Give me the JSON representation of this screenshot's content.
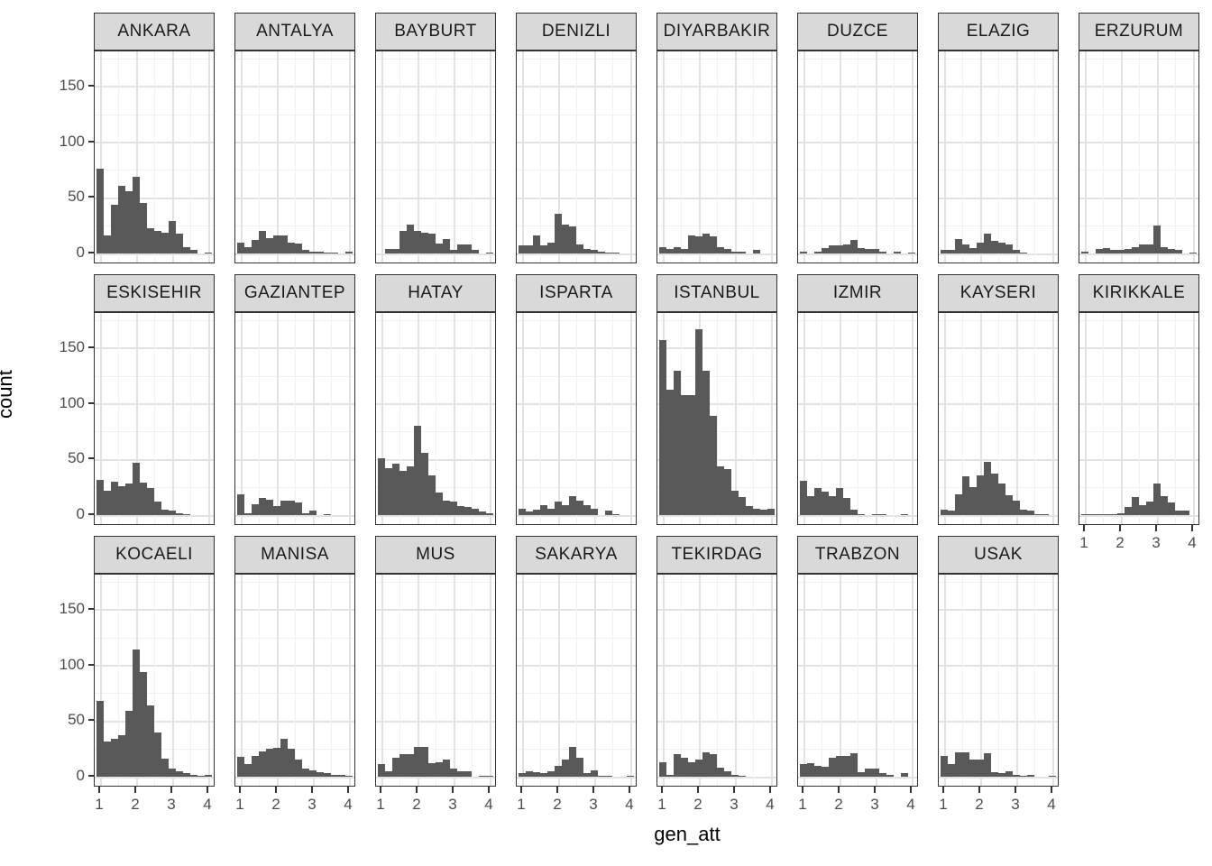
{
  "figure": {
    "y_axis_title": "count",
    "x_axis_title": "gen_att"
  },
  "axes": {
    "y_tick_labels": [
      "0",
      "50",
      "100",
      "150"
    ],
    "y_tick_values": [
      0,
      50,
      100,
      150
    ],
    "y_minor_values": [
      25,
      75,
      125,
      175
    ],
    "x_tick_labels": [
      "1",
      "2",
      "3",
      "4"
    ],
    "x_tick_values": [
      1,
      2,
      3,
      4
    ],
    "x_minor_values": [
      1.5,
      2.5,
      3.5
    ]
  },
  "colors": {
    "bar_fill": "#595959",
    "strip_fill": "#d9d9d9",
    "panel_border": "#333333",
    "grid_major": "#e3e3e3",
    "grid_minor": "#f1f1f1",
    "axis_text": "#4d4d4d",
    "title_text": "#000000"
  },
  "chart_data": {
    "type": "bar",
    "subtype": "faceted-histogram",
    "x_variable": "gen_att",
    "y_variable": "count",
    "facet_variable": "city",
    "bin_width": 0.2,
    "bin_centers": [
      1.0,
      1.2,
      1.4,
      1.6,
      1.8,
      2.0,
      2.2,
      2.4,
      2.6,
      2.8,
      3.0,
      3.2,
      3.4,
      3.6,
      3.8,
      4.0
    ],
    "x_range": [
      0.85,
      4.15
    ],
    "y_range": [
      -10,
      181
    ],
    "grid": true,
    "facets": [
      {
        "label": "ANKARA",
        "counts": [
          76,
          16,
          44,
          61,
          56,
          69,
          45,
          23,
          20,
          19,
          29,
          18,
          6,
          3,
          0,
          1
        ]
      },
      {
        "label": "ANTALYA",
        "counts": [
          10,
          6,
          12,
          20,
          14,
          16,
          16,
          10,
          9,
          3,
          2,
          2,
          1,
          1,
          0,
          2
        ]
      },
      {
        "label": "BAYBURT",
        "counts": [
          0,
          4,
          4,
          20,
          26,
          20,
          19,
          18,
          9,
          13,
          3,
          8,
          8,
          3,
          0,
          1
        ]
      },
      {
        "label": "DENIZLI",
        "counts": [
          7,
          7,
          16,
          7,
          10,
          36,
          26,
          24,
          8,
          4,
          3,
          2,
          1,
          1,
          0,
          0
        ]
      },
      {
        "label": "DIYARBAKIR",
        "counts": [
          6,
          4,
          6,
          4,
          16,
          15,
          18,
          15,
          6,
          4,
          2,
          2,
          0,
          3,
          0,
          0
        ]
      },
      {
        "label": "DUZCE",
        "counts": [
          2,
          0,
          2,
          5,
          7,
          7,
          8,
          12,
          5,
          4,
          4,
          2,
          0,
          2,
          0,
          1
        ]
      },
      {
        "label": "ELAZIG",
        "counts": [
          3,
          3,
          13,
          8,
          5,
          10,
          18,
          11,
          10,
          8,
          3,
          1,
          0,
          0,
          0,
          0
        ]
      },
      {
        "label": "ERZURUM",
        "counts": [
          2,
          0,
          4,
          5,
          3,
          3,
          4,
          6,
          8,
          8,
          25,
          6,
          4,
          3,
          0,
          1
        ]
      },
      {
        "label": "ESKISEHIR",
        "counts": [
          32,
          22,
          30,
          26,
          28,
          47,
          29,
          24,
          12,
          5,
          4,
          2,
          1,
          0,
          0,
          0
        ]
      },
      {
        "label": "GAZIANTEP",
        "counts": [
          19,
          2,
          10,
          15,
          14,
          8,
          13,
          13,
          11,
          2,
          4,
          0,
          1,
          0,
          0,
          0
        ]
      },
      {
        "label": "HATAY",
        "counts": [
          51,
          42,
          46,
          40,
          44,
          80,
          56,
          36,
          20,
          13,
          12,
          8,
          7,
          6,
          3,
          2
        ]
      },
      {
        "label": "ISPARTA",
        "counts": [
          6,
          3,
          5,
          9,
          6,
          12,
          9,
          17,
          13,
          9,
          6,
          0,
          4,
          1,
          0,
          0
        ]
      },
      {
        "label": "ISTANBUL",
        "counts": [
          157,
          113,
          130,
          108,
          108,
          167,
          130,
          89,
          44,
          41,
          22,
          16,
          8,
          6,
          5,
          6
        ]
      },
      {
        "label": "IZMIR",
        "counts": [
          31,
          17,
          24,
          21,
          17,
          24,
          15,
          5,
          1,
          0,
          1,
          1,
          0,
          0,
          1,
          0
        ]
      },
      {
        "label": "KAYSERI",
        "counts": [
          5,
          4,
          19,
          35,
          25,
          36,
          48,
          37,
          28,
          18,
          13,
          5,
          4,
          1,
          1,
          0
        ]
      },
      {
        "label": "KIRIKKALE",
        "counts": [
          1,
          1,
          1,
          1,
          1,
          2,
          7,
          16,
          9,
          12,
          28,
          17,
          11,
          4,
          4,
          0
        ]
      },
      {
        "label": "KOCAELI",
        "counts": [
          68,
          32,
          34,
          37,
          59,
          114,
          94,
          64,
          40,
          16,
          7,
          5,
          3,
          2,
          1,
          2
        ]
      },
      {
        "label": "MANISA",
        "counts": [
          18,
          11,
          19,
          23,
          25,
          26,
          34,
          25,
          15,
          7,
          6,
          4,
          3,
          2,
          2,
          1
        ]
      },
      {
        "label": "MUS",
        "counts": [
          11,
          5,
          17,
          20,
          20,
          27,
          27,
          12,
          13,
          15,
          7,
          5,
          5,
          0,
          1,
          1
        ]
      },
      {
        "label": "SAKARYA",
        "counts": [
          3,
          5,
          4,
          3,
          5,
          10,
          15,
          27,
          17,
          3,
          6,
          1,
          1,
          0,
          0,
          1
        ]
      },
      {
        "label": "TEKIRDAG",
        "counts": [
          13,
          2,
          20,
          17,
          13,
          15,
          22,
          20,
          8,
          5,
          2,
          1,
          0,
          0,
          0,
          0
        ]
      },
      {
        "label": "TRABZON",
        "counts": [
          11,
          12,
          10,
          9,
          17,
          19,
          19,
          21,
          4,
          7,
          7,
          3,
          2,
          0,
          3,
          0
        ]
      },
      {
        "label": "USAK",
        "counts": [
          19,
          11,
          22,
          22,
          15,
          15,
          21,
          4,
          3,
          5,
          2,
          1,
          2,
          0,
          0,
          1
        ]
      }
    ]
  }
}
